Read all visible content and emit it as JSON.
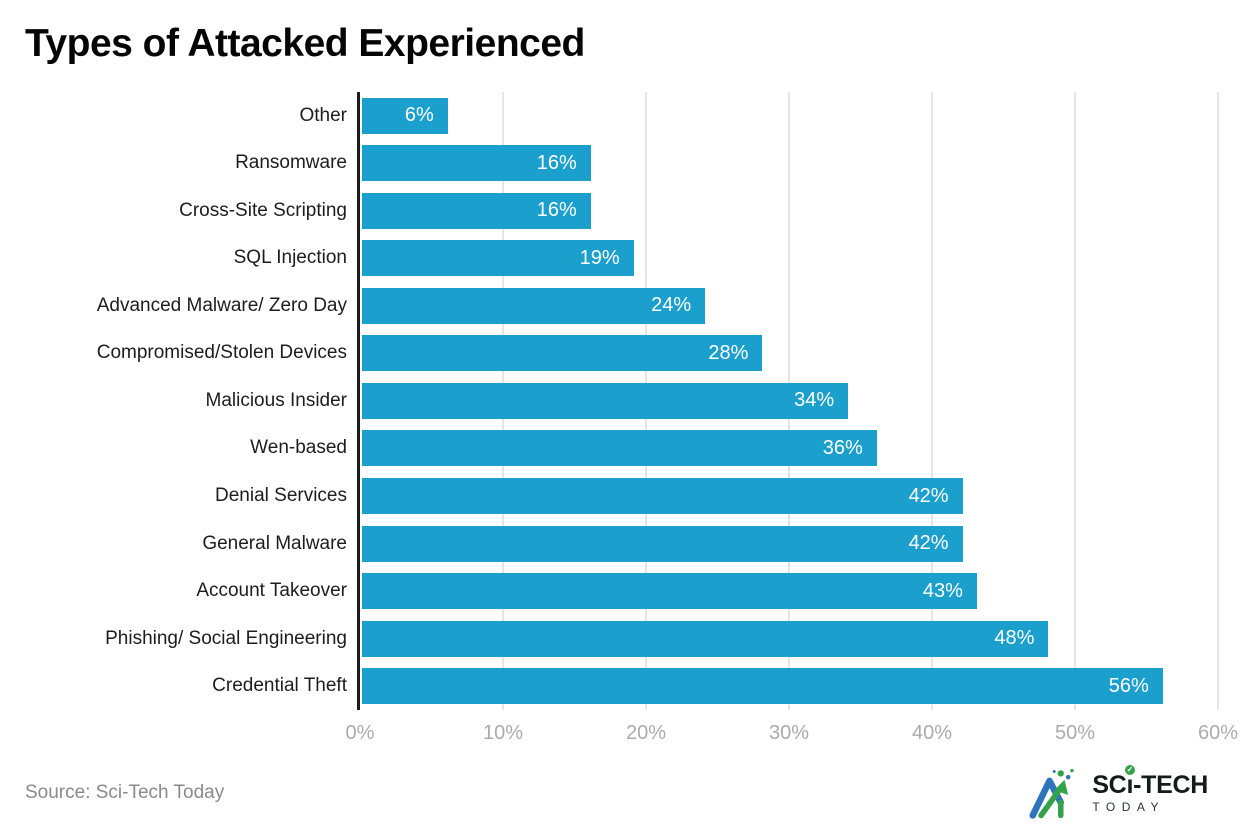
{
  "title": "Types of Attacked Experienced",
  "source": "Source: Sci-Tech Today",
  "logo": {
    "brand_prefix": "SC",
    "i_char": "ı",
    "check": "✓",
    "brand_suffix": "-TECH",
    "line2": "TODAY"
  },
  "colors": {
    "bar": "#1b9fcd",
    "axis_line": "#1c1c1c",
    "gridline": "#e6e6e6",
    "tick_label": "#ababab",
    "category_label": "#1d1d1d",
    "value_label": "#ffffff",
    "logo_green": "#35a14b",
    "logo_blue": "#2d74ba"
  },
  "chart_data": {
    "type": "bar",
    "orientation": "horizontal",
    "title": "Types of Attacked Experienced",
    "categories": [
      "Other",
      "Ransomware",
      "Cross-Site Scripting",
      "SQL Injection",
      "Advanced Malware/ Zero Day",
      "Compromised/Stolen Devices",
      "Malicious Insider",
      "Wen-based",
      "Denial Services",
      "General Malware",
      "Account Takeover",
      "Phishing/ Social Engineering",
      "Credential Theft"
    ],
    "values": [
      6,
      16,
      16,
      19,
      24,
      28,
      34,
      36,
      42,
      42,
      43,
      48,
      56
    ],
    "value_suffix": "%",
    "xlabel": "",
    "ylabel": "",
    "xlim": [
      0,
      60
    ],
    "x_ticks": [
      "0%",
      "10%",
      "20%",
      "30%",
      "40%",
      "50%",
      "60%"
    ],
    "grid": true,
    "legend": false
  }
}
